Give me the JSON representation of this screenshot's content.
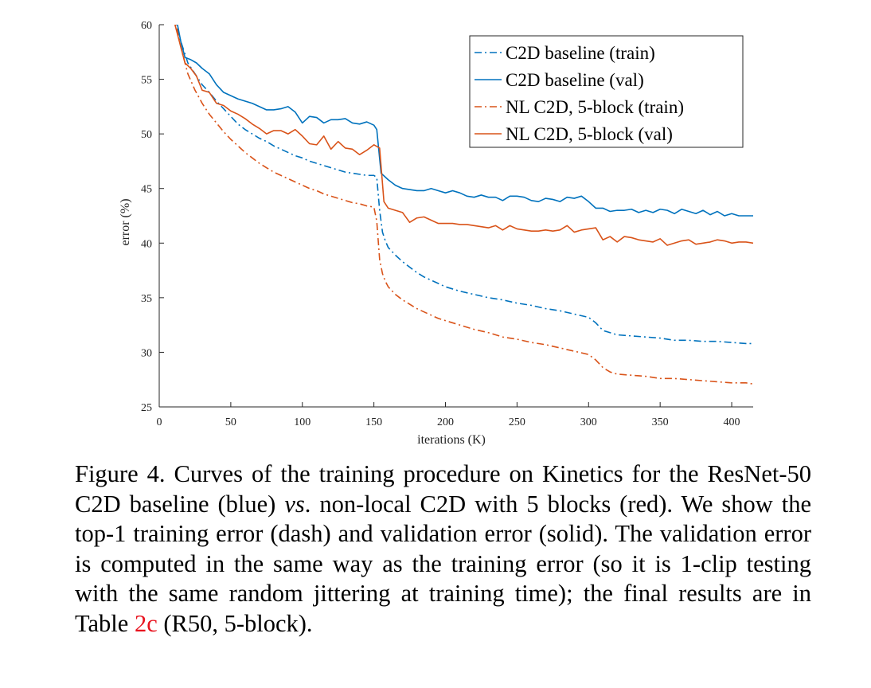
{
  "chart_data": {
    "type": "line",
    "xlabel": "iterations (K)",
    "ylabel": "error (%)",
    "xlim": [
      0,
      415
    ],
    "ylim": [
      25,
      60
    ],
    "xticks": [
      0,
      50,
      100,
      150,
      200,
      250,
      300,
      350,
      400
    ],
    "yticks": [
      25,
      30,
      35,
      40,
      45,
      50,
      55,
      60
    ],
    "grid": false,
    "legend_position": "top-right",
    "series": [
      {
        "name": "C2D baseline (train)",
        "color": "#0072bd",
        "style": "dashdot",
        "points": [
          [
            10,
            61
          ],
          [
            15,
            58.5
          ],
          [
            20,
            56.5
          ],
          [
            25,
            55.5
          ],
          [
            30,
            54.5
          ],
          [
            35,
            53.8
          ],
          [
            40,
            53
          ],
          [
            45,
            52.3
          ],
          [
            50,
            51.6
          ],
          [
            55,
            50.9
          ],
          [
            60,
            50.4
          ],
          [
            65,
            50
          ],
          [
            70,
            49.6
          ],
          [
            75,
            49.3
          ],
          [
            80,
            48.9
          ],
          [
            85,
            48.6
          ],
          [
            90,
            48.3
          ],
          [
            95,
            48
          ],
          [
            100,
            47.8
          ],
          [
            105,
            47.5
          ],
          [
            110,
            47.3
          ],
          [
            115,
            47.1
          ],
          [
            120,
            46.9
          ],
          [
            125,
            46.7
          ],
          [
            130,
            46.5
          ],
          [
            135,
            46.4
          ],
          [
            140,
            46.3
          ],
          [
            145,
            46.2
          ],
          [
            150,
            46.2
          ],
          [
            152,
            46
          ],
          [
            154,
            43
          ],
          [
            156,
            41
          ],
          [
            158,
            40.2
          ],
          [
            160,
            39.6
          ],
          [
            165,
            38.9
          ],
          [
            170,
            38.3
          ],
          [
            175,
            37.8
          ],
          [
            180,
            37.3
          ],
          [
            185,
            36.9
          ],
          [
            190,
            36.6
          ],
          [
            195,
            36.3
          ],
          [
            200,
            36
          ],
          [
            210,
            35.6
          ],
          [
            220,
            35.3
          ],
          [
            230,
            35
          ],
          [
            240,
            34.8
          ],
          [
            250,
            34.5
          ],
          [
            260,
            34.3
          ],
          [
            270,
            34
          ],
          [
            280,
            33.8
          ],
          [
            290,
            33.5
          ],
          [
            300,
            33.2
          ],
          [
            305,
            32.7
          ],
          [
            310,
            32
          ],
          [
            315,
            31.8
          ],
          [
            320,
            31.6
          ],
          [
            330,
            31.5
          ],
          [
            340,
            31.4
          ],
          [
            350,
            31.3
          ],
          [
            360,
            31.1
          ],
          [
            370,
            31.1
          ],
          [
            380,
            31
          ],
          [
            390,
            31
          ],
          [
            400,
            30.9
          ],
          [
            410,
            30.8
          ],
          [
            415,
            30.8
          ]
        ]
      },
      {
        "name": "C2D baseline (val)",
        "color": "#0072bd",
        "style": "solid",
        "points": [
          [
            12,
            60.5
          ],
          [
            15,
            58.5
          ],
          [
            18,
            57
          ],
          [
            22,
            56.8
          ],
          [
            26,
            56.5
          ],
          [
            30,
            56
          ],
          [
            35,
            55.5
          ],
          [
            40,
            54.5
          ],
          [
            45,
            53.8
          ],
          [
            50,
            53.5
          ],
          [
            55,
            53.2
          ],
          [
            60,
            53
          ],
          [
            65,
            52.8
          ],
          [
            70,
            52.5
          ],
          [
            75,
            52.2
          ],
          [
            80,
            52.2
          ],
          [
            85,
            52.3
          ],
          [
            90,
            52.5
          ],
          [
            95,
            52
          ],
          [
            100,
            51
          ],
          [
            105,
            51.6
          ],
          [
            110,
            51.5
          ],
          [
            115,
            51
          ],
          [
            120,
            51.3
          ],
          [
            125,
            51.3
          ],
          [
            130,
            51.4
          ],
          [
            135,
            51
          ],
          [
            140,
            50.9
          ],
          [
            145,
            51.1
          ],
          [
            150,
            50.8
          ],
          [
            152,
            50.4
          ],
          [
            155,
            46.4
          ],
          [
            160,
            45.8
          ],
          [
            165,
            45.3
          ],
          [
            170,
            45
          ],
          [
            175,
            44.9
          ],
          [
            180,
            44.8
          ],
          [
            185,
            44.8
          ],
          [
            190,
            45
          ],
          [
            195,
            44.8
          ],
          [
            200,
            44.6
          ],
          [
            205,
            44.8
          ],
          [
            210,
            44.6
          ],
          [
            215,
            44.3
          ],
          [
            220,
            44.2
          ],
          [
            225,
            44.4
          ],
          [
            230,
            44.2
          ],
          [
            235,
            44.2
          ],
          [
            240,
            43.9
          ],
          [
            245,
            44.3
          ],
          [
            250,
            44.3
          ],
          [
            255,
            44.2
          ],
          [
            260,
            43.9
          ],
          [
            265,
            43.8
          ],
          [
            270,
            44.1
          ],
          [
            275,
            44
          ],
          [
            280,
            43.8
          ],
          [
            285,
            44.2
          ],
          [
            290,
            44.1
          ],
          [
            295,
            44.3
          ],
          [
            300,
            43.8
          ],
          [
            305,
            43.2
          ],
          [
            310,
            43.2
          ],
          [
            315,
            42.9
          ],
          [
            320,
            43
          ],
          [
            325,
            43
          ],
          [
            330,
            43.1
          ],
          [
            335,
            42.8
          ],
          [
            340,
            43
          ],
          [
            345,
            42.8
          ],
          [
            350,
            43.1
          ],
          [
            355,
            43
          ],
          [
            360,
            42.7
          ],
          [
            365,
            43.1
          ],
          [
            370,
            42.9
          ],
          [
            375,
            42.7
          ],
          [
            380,
            43
          ],
          [
            385,
            42.6
          ],
          [
            390,
            42.9
          ],
          [
            395,
            42.5
          ],
          [
            400,
            42.7
          ],
          [
            405,
            42.5
          ],
          [
            410,
            42.5
          ],
          [
            415,
            42.5
          ]
        ]
      },
      {
        "name": "NL C2D, 5-block (train)",
        "color": "#d95319",
        "style": "dashdot",
        "points": [
          [
            10,
            61
          ],
          [
            15,
            58
          ],
          [
            20,
            55.5
          ],
          [
            25,
            54
          ],
          [
            30,
            52.8
          ],
          [
            35,
            51.8
          ],
          [
            40,
            51
          ],
          [
            45,
            50.2
          ],
          [
            50,
            49.5
          ],
          [
            55,
            48.9
          ],
          [
            60,
            48.3
          ],
          [
            65,
            47.8
          ],
          [
            70,
            47.3
          ],
          [
            75,
            46.9
          ],
          [
            80,
            46.5
          ],
          [
            85,
            46.2
          ],
          [
            90,
            45.9
          ],
          [
            95,
            45.6
          ],
          [
            100,
            45.3
          ],
          [
            105,
            45
          ],
          [
            110,
            44.8
          ],
          [
            115,
            44.5
          ],
          [
            120,
            44.3
          ],
          [
            125,
            44.1
          ],
          [
            130,
            43.9
          ],
          [
            135,
            43.7
          ],
          [
            140,
            43.6
          ],
          [
            145,
            43.4
          ],
          [
            150,
            43.3
          ],
          [
            152,
            42
          ],
          [
            154,
            38.5
          ],
          [
            156,
            37.2
          ],
          [
            158,
            36.5
          ],
          [
            160,
            36
          ],
          [
            165,
            35.3
          ],
          [
            170,
            34.8
          ],
          [
            175,
            34.4
          ],
          [
            180,
            34
          ],
          [
            185,
            33.7
          ],
          [
            190,
            33.4
          ],
          [
            195,
            33.1
          ],
          [
            200,
            32.9
          ],
          [
            210,
            32.5
          ],
          [
            220,
            32.1
          ],
          [
            230,
            31.8
          ],
          [
            240,
            31.4
          ],
          [
            250,
            31.2
          ],
          [
            260,
            30.9
          ],
          [
            270,
            30.7
          ],
          [
            280,
            30.4
          ],
          [
            290,
            30.1
          ],
          [
            300,
            29.8
          ],
          [
            305,
            29.3
          ],
          [
            310,
            28.6
          ],
          [
            315,
            28.2
          ],
          [
            320,
            28
          ],
          [
            330,
            27.9
          ],
          [
            340,
            27.8
          ],
          [
            350,
            27.6
          ],
          [
            360,
            27.6
          ],
          [
            370,
            27.5
          ],
          [
            380,
            27.4
          ],
          [
            390,
            27.3
          ],
          [
            400,
            27.2
          ],
          [
            410,
            27.2
          ],
          [
            415,
            27.1
          ]
        ]
      },
      {
        "name": "NL C2D, 5-block (val)",
        "color": "#d95319",
        "style": "solid",
        "points": [
          [
            10,
            60.5
          ],
          [
            15,
            58
          ],
          [
            18,
            56.5
          ],
          [
            22,
            56
          ],
          [
            26,
            55.3
          ],
          [
            30,
            54
          ],
          [
            35,
            53.8
          ],
          [
            40,
            52.8
          ],
          [
            45,
            52.6
          ],
          [
            50,
            52.1
          ],
          [
            55,
            51.8
          ],
          [
            60,
            51.4
          ],
          [
            65,
            50.9
          ],
          [
            70,
            50.5
          ],
          [
            75,
            50
          ],
          [
            80,
            50.3
          ],
          [
            85,
            50.3
          ],
          [
            90,
            50
          ],
          [
            95,
            50.4
          ],
          [
            100,
            49.8
          ],
          [
            105,
            49.1
          ],
          [
            110,
            49
          ],
          [
            115,
            49.8
          ],
          [
            120,
            48.6
          ],
          [
            125,
            49.3
          ],
          [
            130,
            48.7
          ],
          [
            135,
            48.6
          ],
          [
            140,
            48.1
          ],
          [
            145,
            48.5
          ],
          [
            150,
            49
          ],
          [
            154,
            48.7
          ],
          [
            157,
            43.8
          ],
          [
            160,
            43.2
          ],
          [
            165,
            43
          ],
          [
            170,
            42.8
          ],
          [
            175,
            41.9
          ],
          [
            180,
            42.3
          ],
          [
            185,
            42.4
          ],
          [
            190,
            42.1
          ],
          [
            195,
            41.8
          ],
          [
            200,
            41.8
          ],
          [
            205,
            41.8
          ],
          [
            210,
            41.7
          ],
          [
            215,
            41.7
          ],
          [
            220,
            41.6
          ],
          [
            225,
            41.5
          ],
          [
            230,
            41.4
          ],
          [
            235,
            41.6
          ],
          [
            240,
            41.2
          ],
          [
            245,
            41.6
          ],
          [
            250,
            41.3
          ],
          [
            255,
            41.2
          ],
          [
            260,
            41.1
          ],
          [
            265,
            41.1
          ],
          [
            270,
            41.2
          ],
          [
            275,
            41.1
          ],
          [
            280,
            41.2
          ],
          [
            285,
            41.6
          ],
          [
            290,
            41
          ],
          [
            295,
            41.2
          ],
          [
            300,
            41.3
          ],
          [
            305,
            41.4
          ],
          [
            310,
            40.3
          ],
          [
            315,
            40.6
          ],
          [
            320,
            40.1
          ],
          [
            325,
            40.6
          ],
          [
            330,
            40.5
          ],
          [
            335,
            40.3
          ],
          [
            340,
            40.2
          ],
          [
            345,
            40.1
          ],
          [
            350,
            40.4
          ],
          [
            355,
            39.8
          ],
          [
            360,
            40
          ],
          [
            365,
            40.2
          ],
          [
            370,
            40.3
          ],
          [
            375,
            39.9
          ],
          [
            380,
            40
          ],
          [
            385,
            40.1
          ],
          [
            390,
            40.3
          ],
          [
            395,
            40.2
          ],
          [
            400,
            40
          ],
          [
            405,
            40.1
          ],
          [
            410,
            40.1
          ],
          [
            415,
            40
          ]
        ]
      }
    ]
  },
  "caption": {
    "part1": "Figure 4. Curves of the training procedure on Kinetics for the ResNet-50 C2D baseline (blue) ",
    "vs": "vs",
    "part2": ". non-local C2D with 5 blocks (red). We show the top-1 training error (dash) and validation error (solid). The validation error is computed in the same way as the training error (so it is 1-clip testing with the same random jittering at training time); the final results are in Table ",
    "table_ref": "2c",
    "part3": " (R50, 5-block)."
  }
}
